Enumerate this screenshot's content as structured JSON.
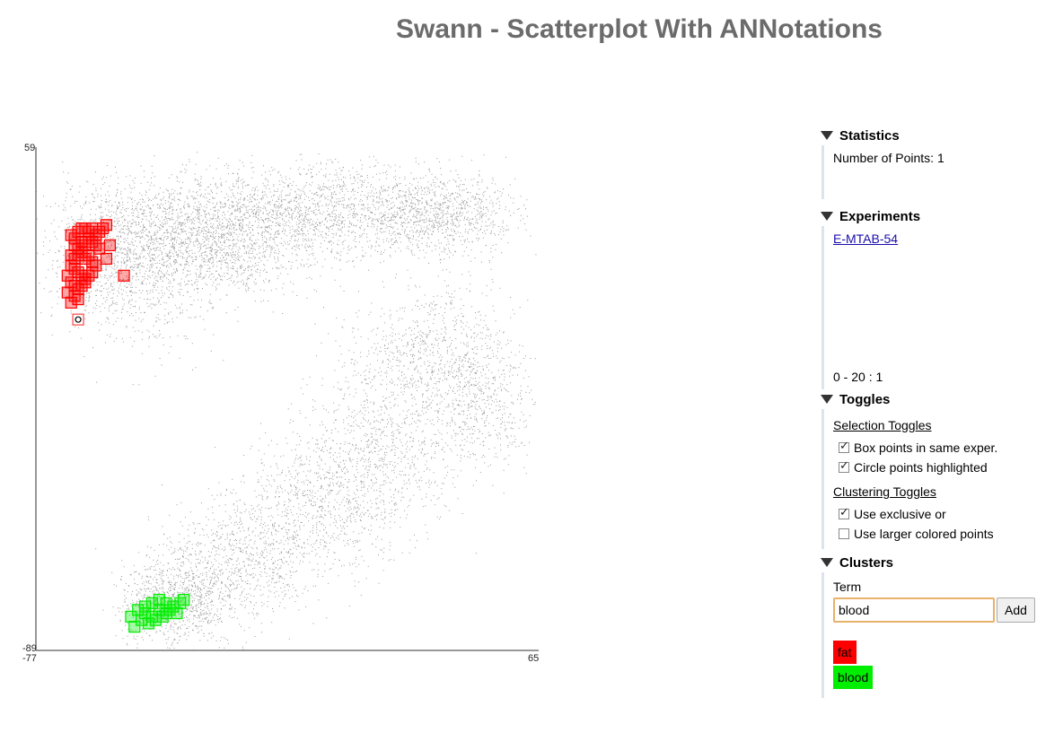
{
  "app": {
    "title": "Swann - Scatterplot With ANNotations"
  },
  "chart_data": {
    "type": "scatter",
    "x_axis": {
      "min": -77,
      "max": 65,
      "min_label": "-77",
      "max_label": "65"
    },
    "y_axis": {
      "min": -89,
      "max": 59,
      "min_label": "-89",
      "max_label": "59"
    },
    "grid": false,
    "background_color": "#999999",
    "clusters": [
      {
        "name": "fat",
        "color": "#ff0000",
        "marker": "square",
        "points": [
          [
            -67,
            34
          ],
          [
            -66,
            33
          ],
          [
            -65,
            35
          ],
          [
            -64,
            36
          ],
          [
            -63,
            36
          ],
          [
            -62,
            35
          ],
          [
            -61,
            36
          ],
          [
            -60,
            34
          ],
          [
            -59,
            35
          ],
          [
            -66,
            31
          ],
          [
            -65,
            30
          ],
          [
            -64,
            32
          ],
          [
            -63,
            31
          ],
          [
            -62,
            33
          ],
          [
            -61,
            32
          ],
          [
            -60,
            31
          ],
          [
            -59,
            30
          ],
          [
            -67,
            28
          ],
          [
            -66,
            27
          ],
          [
            -65,
            28
          ],
          [
            -64,
            29
          ],
          [
            -63,
            27
          ],
          [
            -62,
            28
          ],
          [
            -61,
            26
          ],
          [
            -60,
            25
          ],
          [
            -67,
            25
          ],
          [
            -66,
            24
          ],
          [
            -65,
            23
          ],
          [
            -64,
            22
          ],
          [
            -63,
            21
          ],
          [
            -62,
            22
          ],
          [
            -61,
            23
          ],
          [
            -68,
            22
          ],
          [
            -67,
            20
          ],
          [
            -66,
            19
          ],
          [
            -65,
            18
          ],
          [
            -64,
            19
          ],
          [
            -63,
            20
          ],
          [
            -68,
            17
          ],
          [
            -66,
            16
          ],
          [
            -65,
            15
          ],
          [
            -67,
            14
          ],
          [
            -58,
            36
          ],
          [
            -57,
            37
          ],
          [
            -56,
            31
          ],
          [
            -52,
            22
          ],
          [
            -57,
            27
          ]
        ]
      },
      {
        "name": "blood",
        "color": "#00ee00",
        "marker": "square",
        "points": [
          [
            -48,
            -77
          ],
          [
            -46,
            -78
          ],
          [
            -44,
            -79
          ],
          [
            -42,
            -77
          ],
          [
            -40,
            -78
          ],
          [
            -47,
            -80
          ],
          [
            -45,
            -81
          ],
          [
            -43,
            -80
          ],
          [
            -41,
            -79
          ],
          [
            -39,
            -77
          ],
          [
            -38,
            -76
          ],
          [
            -46,
            -76
          ],
          [
            -44,
            -75
          ],
          [
            -42,
            -74
          ],
          [
            -40,
            -75
          ],
          [
            -37,
            -78
          ],
          [
            -49,
            -82
          ],
          [
            -50,
            -79
          ],
          [
            -36,
            -75
          ],
          [
            -35,
            -74
          ]
        ]
      }
    ],
    "highlighted_point": [
      -65,
      9
    ]
  },
  "sidebar": {
    "statistics": {
      "header": "Statistics",
      "number_of_points_label": "Number of Points: 1"
    },
    "experiments": {
      "header": "Experiments",
      "link_text": "E-MTAB-54",
      "range_text": "0 - 20 : 1"
    },
    "toggles": {
      "header": "Toggles",
      "selection_title": "Selection Toggles",
      "box_points_label": "Box points in same exper.",
      "box_points_checked": true,
      "circle_points_label": "Circle points highlighted",
      "circle_points_checked": true,
      "clustering_title": "Clustering Toggles",
      "exclusive_or_label": "Use exclusive or",
      "exclusive_or_checked": true,
      "larger_points_label": "Use larger colored points",
      "larger_points_checked": false
    },
    "clusters": {
      "header": "Clusters",
      "term_label": "Term",
      "term_value": "blood",
      "add_label": "Add",
      "tags": [
        {
          "label": "fat",
          "color": "#ff0000"
        },
        {
          "label": "blood",
          "color": "#00ee00"
        }
      ]
    }
  }
}
